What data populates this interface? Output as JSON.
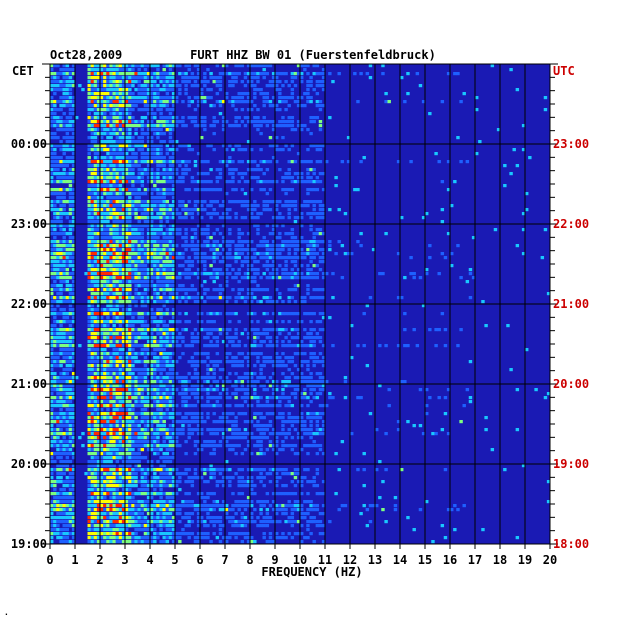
{
  "header": {
    "date": "Oct28,2009",
    "station": "FURT HHZ BW 01 (Fuerstenfeldbruck)",
    "left_tz": "CET",
    "right_tz": "UTC"
  },
  "footer": {
    "mark": "."
  },
  "colors": {
    "background": "#1a1ab4",
    "grid": "#000000",
    "utc_label": "#cc0000",
    "cet_label": "#000000"
  },
  "chart_data": {
    "type": "heatmap",
    "title": "FURT HHZ BW 01 (Fuerstenfeldbruck)",
    "xlabel": "FREQUENCY (HZ)",
    "ylabel_left": "CET",
    "ylabel_right": "UTC",
    "xlim": [
      0,
      20
    ],
    "x_ticks": [
      "0",
      "1",
      "2",
      "3",
      "4",
      "5",
      "6",
      "7",
      "8",
      "9",
      "10",
      "11",
      "12",
      "13",
      "14",
      "15",
      "16",
      "17",
      "18",
      "19",
      "20"
    ],
    "y_ticks_left": [
      "00:00",
      "23:00",
      "22:00",
      "21:00",
      "20:00",
      "19:00"
    ],
    "y_ticks_right": [
      "23:00",
      "22:00",
      "21:00",
      "20:00",
      "19:00",
      "18:00"
    ],
    "y_tick_minutes_from_bottom": [
      300,
      240,
      180,
      120,
      60,
      0
    ],
    "time_span_minutes": 360,
    "grid": true,
    "colormap": [
      "#1a1ab4",
      "#1e60ff",
      "#19c8ff",
      "#7dff80",
      "#ffff00",
      "#ff2a00"
    ],
    "energy_bands_hz": [
      {
        "range": [
          1.5,
          3.2
        ],
        "level": "high"
      },
      {
        "range": [
          0,
          1.0
        ],
        "level": "medium"
      },
      {
        "range": [
          3.2,
          5.0
        ],
        "level": "medium"
      },
      {
        "range": [
          5.0,
          11.0
        ],
        "level": "low"
      },
      {
        "range": [
          11.0,
          17.0
        ],
        "level": "very low"
      }
    ]
  }
}
